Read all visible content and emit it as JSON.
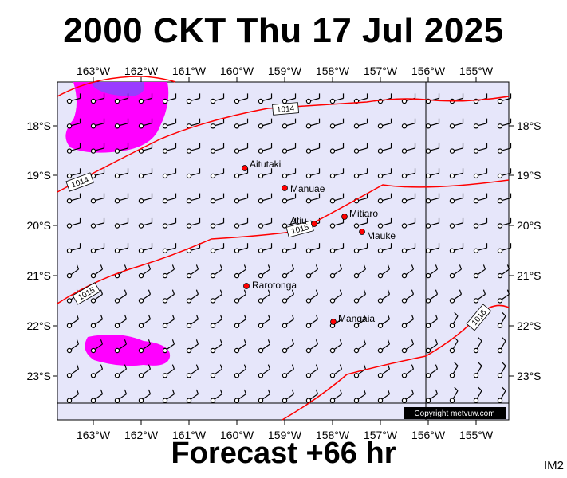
{
  "title": "2000 CKT Thu 17 Jul 2025",
  "forecast_label": "Forecast +66 hr",
  "corner_label": "IM2",
  "copyright": "Copyright metvuw.com",
  "colors": {
    "ocean": "#e6e6fa",
    "isobar": "#ff0000",
    "rain_light": "#ff00ff",
    "rain_heavy": "#9a3cff",
    "grid": "#000000"
  },
  "map": {
    "lon_ticks": [
      "163°W",
      "162°W",
      "161°W",
      "160°W",
      "159°W",
      "158°W",
      "157°W",
      "156°W",
      "155°W"
    ],
    "lat_ticks": [
      "18°S",
      "19°S",
      "20°S",
      "21°S",
      "22°S",
      "23°S"
    ],
    "isobar_labels": [
      {
        "name": "1014-north",
        "text": "1014"
      },
      {
        "name": "1014-west",
        "text": "1014"
      },
      {
        "name": "1015-middle",
        "text": "1015"
      },
      {
        "name": "1015-west",
        "text": "1015"
      },
      {
        "name": "1016-east",
        "text": "1016"
      }
    ],
    "places": [
      {
        "name": "aitutaki",
        "label": "Aitutaki"
      },
      {
        "name": "manuae",
        "label": "Manuae"
      },
      {
        "name": "atiu",
        "label": "Atiu"
      },
      {
        "name": "mitiaro",
        "label": "Mitiaro"
      },
      {
        "name": "mauke",
        "label": "Mauke"
      },
      {
        "name": "rarotonga",
        "label": "Rarotonga"
      },
      {
        "name": "mangaia",
        "label": "Mangaia"
      }
    ]
  }
}
